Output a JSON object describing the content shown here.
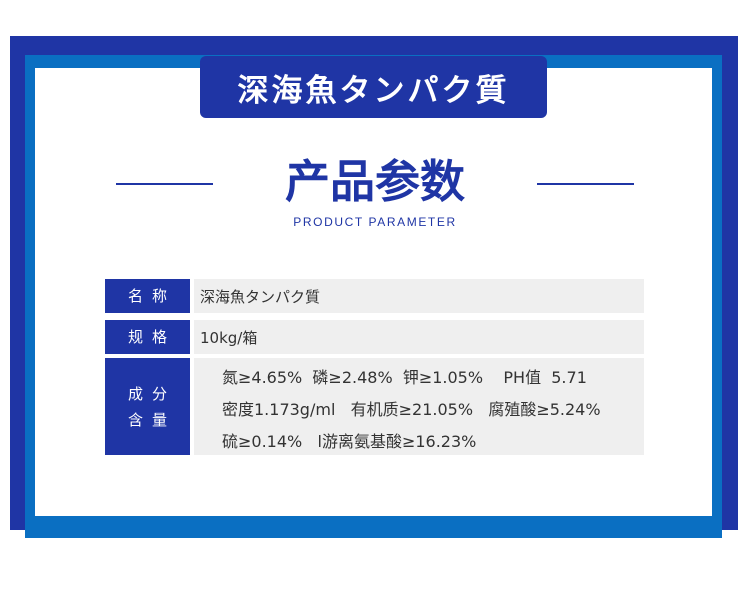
{
  "title_badge": "深海魚タンパク質",
  "section_heading": "产品参数",
  "section_subheading": "PRODUCT PARAMETER",
  "table": {
    "name": {
      "label": "名称",
      "value": "深海魚タンパク質"
    },
    "spec": {
      "label": "规格",
      "value": "10kg/箱"
    },
    "composition": {
      "label_line1": "成分",
      "label_line2": "含量",
      "lines": [
        "氮≥4.65%  磷≥2.48%  钾≥1.05%    PH值  5.71",
        "密度1.173g/ml   有机质≥21.05%   腐殖酸≥5.24%",
        "硫≥0.14%   l游离氨基酸≥16.23%"
      ]
    }
  },
  "colors": {
    "navy": "#1f35a5",
    "blue": "#0a6fc2",
    "cell_bg": "#efefef"
  }
}
